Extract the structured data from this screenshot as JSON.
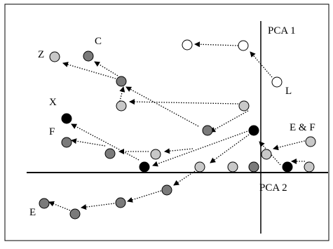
{
  "axes": {
    "vertical_label": "PCA 1",
    "horizontal_label": "PCA 2"
  },
  "labels": {
    "z": "Z",
    "c": "C",
    "x": "X",
    "f": "F",
    "e": "E",
    "l": "L",
    "ef": "E & F"
  },
  "colors": {
    "light": "#c8c8c8",
    "dark": "#7a7a7a",
    "black": "#000000",
    "white": "#ffffff"
  }
}
